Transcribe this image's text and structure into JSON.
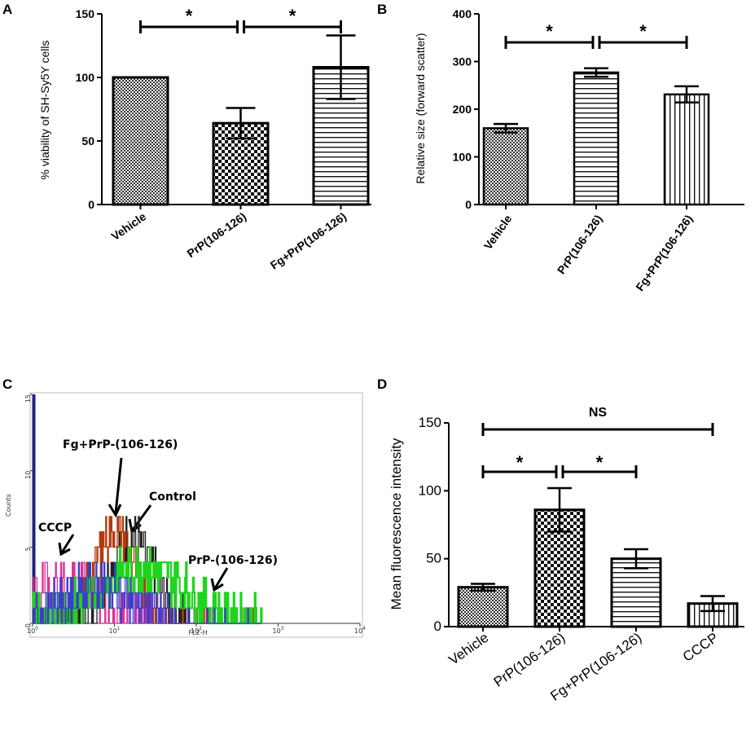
{
  "chart_data": [
    {
      "panel": "A",
      "type": "bar",
      "ylabel": "% viability of SH-Sy5Y cells",
      "ylim": [
        0,
        150
      ],
      "yticks": [
        0,
        50,
        100,
        150
      ],
      "categories": [
        "Vehicle",
        "PrP(106-126)",
        "Fg+PrP(106-126)"
      ],
      "values": [
        100,
        64,
        108
      ],
      "errors": [
        0,
        12,
        25
      ],
      "patterns": [
        "fine-check",
        "check",
        "hstripe"
      ],
      "significance": [
        {
          "from": 0,
          "to": 1,
          "label": "*"
        },
        {
          "from": 1,
          "to": 2,
          "label": "*"
        }
      ]
    },
    {
      "panel": "B",
      "type": "bar",
      "ylabel": "Relative size (forward scatter)",
      "ylim": [
        0,
        400
      ],
      "yticks": [
        0,
        100,
        200,
        300,
        400
      ],
      "categories": [
        "Vehicle",
        "PrP(106-126)",
        "Fg+PrP(106-126)"
      ],
      "values": [
        160,
        277,
        231
      ],
      "errors": [
        9,
        9,
        17
      ],
      "patterns": [
        "fine-check",
        "hstripe",
        "vstripe"
      ],
      "significance": [
        {
          "from": 0,
          "to": 1,
          "label": "*"
        },
        {
          "from": 1,
          "to": 2,
          "label": "*"
        }
      ]
    },
    {
      "panel": "C",
      "type": "line",
      "xlabel": "FL2-H",
      "ylabel": "Counts",
      "xscale": "log",
      "xlim": [
        1,
        10000
      ],
      "ylim": [
        0,
        15
      ],
      "yticks": [
        0,
        5,
        10,
        15
      ],
      "xticks": [
        {
          "v": 1,
          "base": "10",
          "exp": "0"
        },
        {
          "v": 10,
          "base": "10",
          "exp": "1"
        },
        {
          "v": 100,
          "base": "10",
          "exp": "2"
        },
        {
          "v": 1000,
          "base": "10",
          "exp": "3"
        },
        {
          "v": 10000,
          "base": "10",
          "exp": "4"
        }
      ],
      "series": [
        {
          "name": "Control",
          "color": "#222222",
          "peak": 16,
          "spread": 0.28,
          "height": 5.5,
          "seed": 7
        },
        {
          "name": "CCCP",
          "color": "#e0309a",
          "peak": 2.6,
          "spread": 0.45,
          "height": 2.8,
          "seed": 19
        },
        {
          "name": "Fg+PrP-(106-126)",
          "color": "#b53a0c",
          "peak": 10,
          "spread": 0.25,
          "height": 6.2,
          "seed": 31
        },
        {
          "name": "PrP-(106-126)",
          "color": "#1ed41e",
          "peak": 22,
          "spread": 0.55,
          "height": 3.6,
          "seed": 43
        },
        {
          "name": "",
          "color": "#3d3dcc",
          "peak": 6,
          "spread": 0.4,
          "height": 2.6,
          "seed": 55
        }
      ],
      "annotations": [
        "Fg+PrP-(106-126)",
        "Control",
        "CCCP",
        "PrP-(106-126)"
      ]
    },
    {
      "panel": "D",
      "type": "bar",
      "ylabel": "Mean fluorescence intensity",
      "ylim": [
        0,
        150
      ],
      "yticks": [
        0,
        50,
        100,
        150
      ],
      "categories": [
        "Vehicle",
        "PrP(106-126)",
        "Fg+PrP(106-126)",
        "CCCP"
      ],
      "values": [
        29,
        86,
        50,
        17
      ],
      "errors": [
        2.5,
        16,
        7,
        5.5
      ],
      "patterns": [
        "fine-check",
        "check",
        "hstripe",
        "vstripe"
      ],
      "significance": [
        {
          "from": 0,
          "to": 1,
          "label": "*"
        },
        {
          "from": 1,
          "to": 2,
          "label": "*"
        },
        {
          "from": 0,
          "to": 3,
          "label": "NS"
        }
      ]
    }
  ],
  "panel_labels": [
    "A",
    "B",
    "C",
    "D"
  ]
}
